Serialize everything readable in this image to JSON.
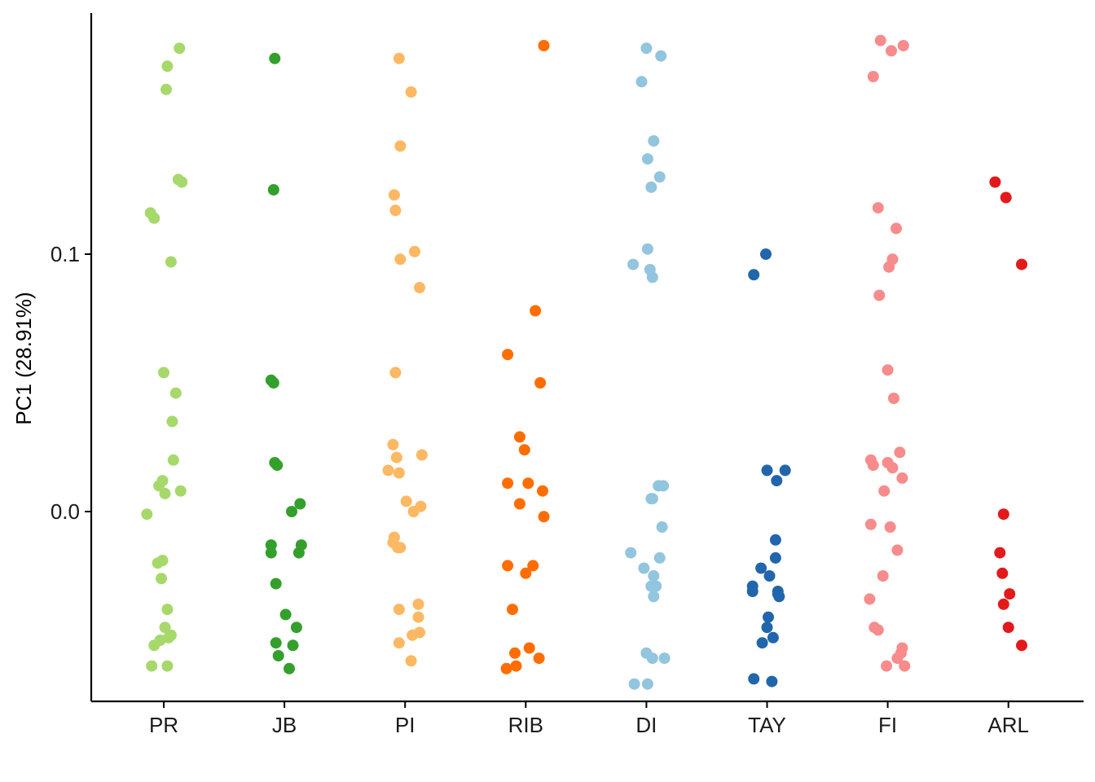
{
  "chart_data": {
    "type": "scatter",
    "xlabel": "",
    "ylabel": "PC1 (28.91%)",
    "ylim": [
      -0.073,
      0.194
    ],
    "yticks": [
      0.0,
      0.1
    ],
    "ytick_labels": [
      "0.0",
      "0.1"
    ],
    "grid": false,
    "legend": "none",
    "categories": [
      "PR",
      "JB",
      "PI",
      "RIB",
      "DI",
      "TAY",
      "FI",
      "ARL"
    ],
    "series": [
      {
        "category": "PR",
        "color": "#A6D96A",
        "points": [
          [
            0.13,
            0.18
          ],
          [
            0.03,
            0.173
          ],
          [
            0.02,
            0.164
          ],
          [
            0.12,
            0.129
          ],
          [
            0.15,
            0.128
          ],
          [
            -0.11,
            0.116
          ],
          [
            -0.08,
            0.114
          ],
          [
            0.06,
            0.097
          ],
          [
            0.0,
            0.054
          ],
          [
            0.1,
            0.046
          ],
          [
            0.07,
            0.035
          ],
          [
            0.08,
            0.02
          ],
          [
            -0.04,
            0.01
          ],
          [
            -0.01,
            0.012
          ],
          [
            0.01,
            0.007
          ],
          [
            0.14,
            0.008
          ],
          [
            -0.14,
            -0.001
          ],
          [
            -0.05,
            -0.02
          ],
          [
            -0.01,
            -0.019
          ],
          [
            -0.02,
            -0.026
          ],
          [
            0.03,
            -0.038
          ],
          [
            0.01,
            -0.045
          ],
          [
            0.06,
            -0.048
          ],
          [
            -0.08,
            -0.052
          ],
          [
            -0.03,
            -0.05
          ],
          [
            0.04,
            -0.049
          ],
          [
            -0.1,
            -0.06
          ],
          [
            0.03,
            -0.06
          ]
        ]
      },
      {
        "category": "JB",
        "color": "#33A02C",
        "points": [
          [
            -0.08,
            0.176
          ],
          [
            -0.09,
            0.125
          ],
          [
            -0.11,
            0.051
          ],
          [
            -0.09,
            0.05
          ],
          [
            -0.08,
            0.019
          ],
          [
            -0.06,
            0.018
          ],
          [
            0.13,
            0.003
          ],
          [
            0.06,
            0.0
          ],
          [
            -0.11,
            -0.013
          ],
          [
            0.14,
            -0.013
          ],
          [
            -0.11,
            -0.016
          ],
          [
            0.12,
            -0.016
          ],
          [
            -0.07,
            -0.028
          ],
          [
            0.01,
            -0.04
          ],
          [
            0.1,
            -0.045
          ],
          [
            -0.07,
            -0.051
          ],
          [
            0.07,
            -0.052
          ],
          [
            -0.05,
            -0.056
          ],
          [
            0.04,
            -0.061
          ]
        ]
      },
      {
        "category": "PI",
        "color": "#FDB863",
        "points": [
          [
            -0.05,
            0.176
          ],
          [
            0.05,
            0.163
          ],
          [
            -0.04,
            0.142
          ],
          [
            -0.09,
            0.123
          ],
          [
            -0.08,
            0.117
          ],
          [
            0.08,
            0.101
          ],
          [
            -0.04,
            0.098
          ],
          [
            0.12,
            0.087
          ],
          [
            -0.08,
            0.054
          ],
          [
            -0.1,
            0.026
          ],
          [
            0.14,
            0.022
          ],
          [
            -0.07,
            0.021
          ],
          [
            -0.14,
            0.016
          ],
          [
            -0.05,
            0.015
          ],
          [
            0.01,
            0.004
          ],
          [
            0.13,
            0.002
          ],
          [
            0.07,
            0.0
          ],
          [
            -0.09,
            -0.01
          ],
          [
            -0.1,
            -0.012
          ],
          [
            -0.06,
            -0.014
          ],
          [
            -0.04,
            -0.014
          ],
          [
            0.11,
            -0.036
          ],
          [
            -0.05,
            -0.038
          ],
          [
            0.11,
            -0.041
          ],
          [
            0.12,
            -0.047
          ],
          [
            0.06,
            -0.048
          ],
          [
            -0.05,
            -0.051
          ],
          [
            0.05,
            -0.058
          ]
        ]
      },
      {
        "category": "RIB",
        "color": "#FF6D00",
        "points": [
          [
            0.15,
            0.181
          ],
          [
            0.08,
            0.078
          ],
          [
            -0.15,
            0.061
          ],
          [
            0.12,
            0.05
          ],
          [
            -0.05,
            0.029
          ],
          [
            -0.01,
            0.024
          ],
          [
            -0.15,
            0.011
          ],
          [
            0.02,
            0.011
          ],
          [
            0.14,
            0.008
          ],
          [
            -0.05,
            0.003
          ],
          [
            0.15,
            -0.002
          ],
          [
            -0.15,
            -0.021
          ],
          [
            0.06,
            -0.021
          ],
          [
            0.0,
            -0.024
          ],
          [
            -0.11,
            -0.038
          ],
          [
            0.03,
            -0.053
          ],
          [
            -0.09,
            -0.055
          ],
          [
            0.11,
            -0.057
          ],
          [
            -0.08,
            -0.06
          ],
          [
            -0.16,
            -0.061
          ]
        ]
      },
      {
        "category": "DI",
        "color": "#92C5DE",
        "points": [
          [
            0.0,
            0.18
          ],
          [
            0.12,
            0.177
          ],
          [
            -0.04,
            0.167
          ],
          [
            0.06,
            0.144
          ],
          [
            0.01,
            0.137
          ],
          [
            0.11,
            0.13
          ],
          [
            0.04,
            0.126
          ],
          [
            0.01,
            0.102
          ],
          [
            0.03,
            0.094
          ],
          [
            -0.11,
            0.096
          ],
          [
            0.05,
            0.091
          ],
          [
            0.1,
            0.01
          ],
          [
            0.14,
            0.01
          ],
          [
            0.05,
            0.005
          ],
          [
            0.04,
            0.005
          ],
          [
            0.13,
            -0.006
          ],
          [
            -0.13,
            -0.016
          ],
          [
            0.11,
            -0.018
          ],
          [
            -0.02,
            -0.022
          ],
          [
            0.06,
            -0.025
          ],
          [
            0.04,
            -0.029
          ],
          [
            0.08,
            -0.029
          ],
          [
            0.06,
            -0.033
          ],
          [
            0.0,
            -0.055
          ],
          [
            0.05,
            -0.057
          ],
          [
            0.15,
            -0.057
          ],
          [
            -0.1,
            -0.067
          ],
          [
            0.01,
            -0.067
          ]
        ]
      },
      {
        "category": "TAY",
        "color": "#2166AC",
        "points": [
          [
            -0.01,
            0.1
          ],
          [
            -0.11,
            0.092
          ],
          [
            0.0,
            0.016
          ],
          [
            0.15,
            0.016
          ],
          [
            0.08,
            0.012
          ],
          [
            0.07,
            -0.011
          ],
          [
            0.07,
            -0.018
          ],
          [
            -0.05,
            -0.022
          ],
          [
            0.02,
            -0.025
          ],
          [
            -0.12,
            -0.029
          ],
          [
            0.09,
            -0.031
          ],
          [
            0.1,
            -0.033
          ],
          [
            -0.12,
            -0.031
          ],
          [
            0.09,
            -0.032
          ],
          [
            0.01,
            -0.041
          ],
          [
            0.0,
            -0.045
          ],
          [
            0.05,
            -0.049
          ],
          [
            -0.04,
            -0.051
          ],
          [
            -0.11,
            -0.065
          ],
          [
            0.04,
            -0.066
          ]
        ]
      },
      {
        "category": "FI",
        "color": "#F88B8B",
        "points": [
          [
            -0.06,
            0.183
          ],
          [
            0.13,
            0.181
          ],
          [
            0.03,
            0.179
          ],
          [
            -0.12,
            0.169
          ],
          [
            -0.08,
            0.118
          ],
          [
            0.07,
            0.11
          ],
          [
            0.04,
            0.098
          ],
          [
            0.01,
            0.095
          ],
          [
            -0.07,
            0.084
          ],
          [
            0.0,
            0.055
          ],
          [
            0.05,
            0.044
          ],
          [
            0.1,
            0.023
          ],
          [
            -0.14,
            0.02
          ],
          [
            0.0,
            0.019
          ],
          [
            -0.12,
            0.018
          ],
          [
            0.04,
            0.017
          ],
          [
            0.12,
            0.013
          ],
          [
            -0.03,
            0.008
          ],
          [
            -0.14,
            -0.005
          ],
          [
            0.02,
            -0.006
          ],
          [
            0.08,
            -0.015
          ],
          [
            -0.04,
            -0.025
          ],
          [
            -0.15,
            -0.034
          ],
          [
            -0.11,
            -0.045
          ],
          [
            -0.08,
            -0.046
          ],
          [
            0.12,
            -0.053
          ],
          [
            0.11,
            -0.055
          ],
          [
            0.08,
            -0.057
          ],
          [
            -0.01,
            -0.06
          ],
          [
            0.14,
            -0.06
          ]
        ]
      },
      {
        "category": "ARL",
        "color": "#E31A1C",
        "points": [
          [
            -0.11,
            0.128
          ],
          [
            -0.02,
            0.122
          ],
          [
            0.11,
            0.096
          ],
          [
            -0.04,
            -0.001
          ],
          [
            -0.07,
            -0.016
          ],
          [
            -0.05,
            -0.024
          ],
          [
            0.01,
            -0.032
          ],
          [
            -0.04,
            -0.036
          ],
          [
            0.0,
            -0.045
          ],
          [
            0.11,
            -0.052
          ]
        ]
      }
    ]
  }
}
